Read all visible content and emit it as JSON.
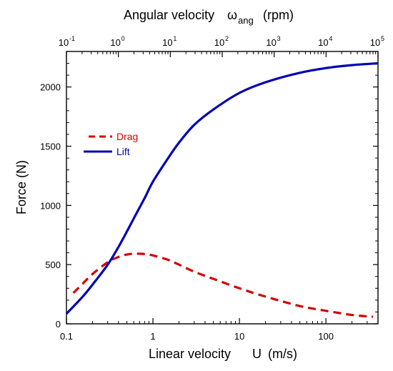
{
  "chart_data": {
    "type": "line",
    "xlabel": "Linear velocity",
    "xlabel_symbol": "U",
    "xlabel_unit": "(m/s)",
    "x_scale": "log",
    "xlim": [
      0.1,
      400
    ],
    "x_ticks": [
      0.1,
      1,
      10,
      100
    ],
    "x_tick_labels": [
      "0.1",
      "1",
      "10",
      "100"
    ],
    "top_xlabel": "Angular velocity",
    "top_xlabel_symbol": "ω",
    "top_xlabel_subscript": "ang",
    "top_xlabel_unit": "(rpm)",
    "top_x_scale": "log",
    "top_xlim": [
      0.1,
      100000
    ],
    "top_x_ticks": [
      {
        "base": "10",
        "exp": "-1",
        "value": 0.1
      },
      {
        "base": "10",
        "exp": "0",
        "value": 1
      },
      {
        "base": "10",
        "exp": "1",
        "value": 10
      },
      {
        "base": "10",
        "exp": "2",
        "value": 100
      },
      {
        "base": "10",
        "exp": "3",
        "value": 1000
      },
      {
        "base": "10",
        "exp": "4",
        "value": 10000
      },
      {
        "base": "10",
        "exp": "5",
        "value": 100000
      }
    ],
    "ylabel": "Force (N)",
    "ylim": [
      0,
      2300
    ],
    "y_ticks": [
      0,
      500,
      1000,
      1500,
      2000
    ],
    "y_tick_labels": [
      "0",
      "500",
      "1000",
      "1500",
      "2000"
    ],
    "grid": false,
    "legend_position": "upper-left",
    "series": [
      {
        "name": "Drag",
        "color": "#d40000",
        "style": "dashed",
        "x": [
          0.12,
          0.15,
          0.2,
          0.3,
          0.4,
          0.5,
          0.6,
          0.8,
          1,
          1.5,
          2,
          3,
          5,
          10,
          20,
          50,
          100,
          200,
          350
        ],
        "y": [
          260,
          330,
          420,
          520,
          565,
          585,
          592,
          590,
          578,
          540,
          500,
          440,
          380,
          300,
          230,
          150,
          110,
          75,
          60
        ]
      },
      {
        "name": "Lift",
        "color": "#0000b4",
        "style": "solid",
        "x": [
          0.1,
          0.15,
          0.2,
          0.3,
          0.4,
          0.5,
          0.6,
          0.8,
          1,
          1.5,
          2,
          3,
          5,
          10,
          20,
          50,
          100,
          200,
          400
        ],
        "y": [
          85,
          220,
          330,
          500,
          650,
          780,
          890,
          1060,
          1200,
          1400,
          1530,
          1680,
          1810,
          1950,
          2040,
          2120,
          2160,
          2185,
          2200
        ]
      }
    ]
  }
}
